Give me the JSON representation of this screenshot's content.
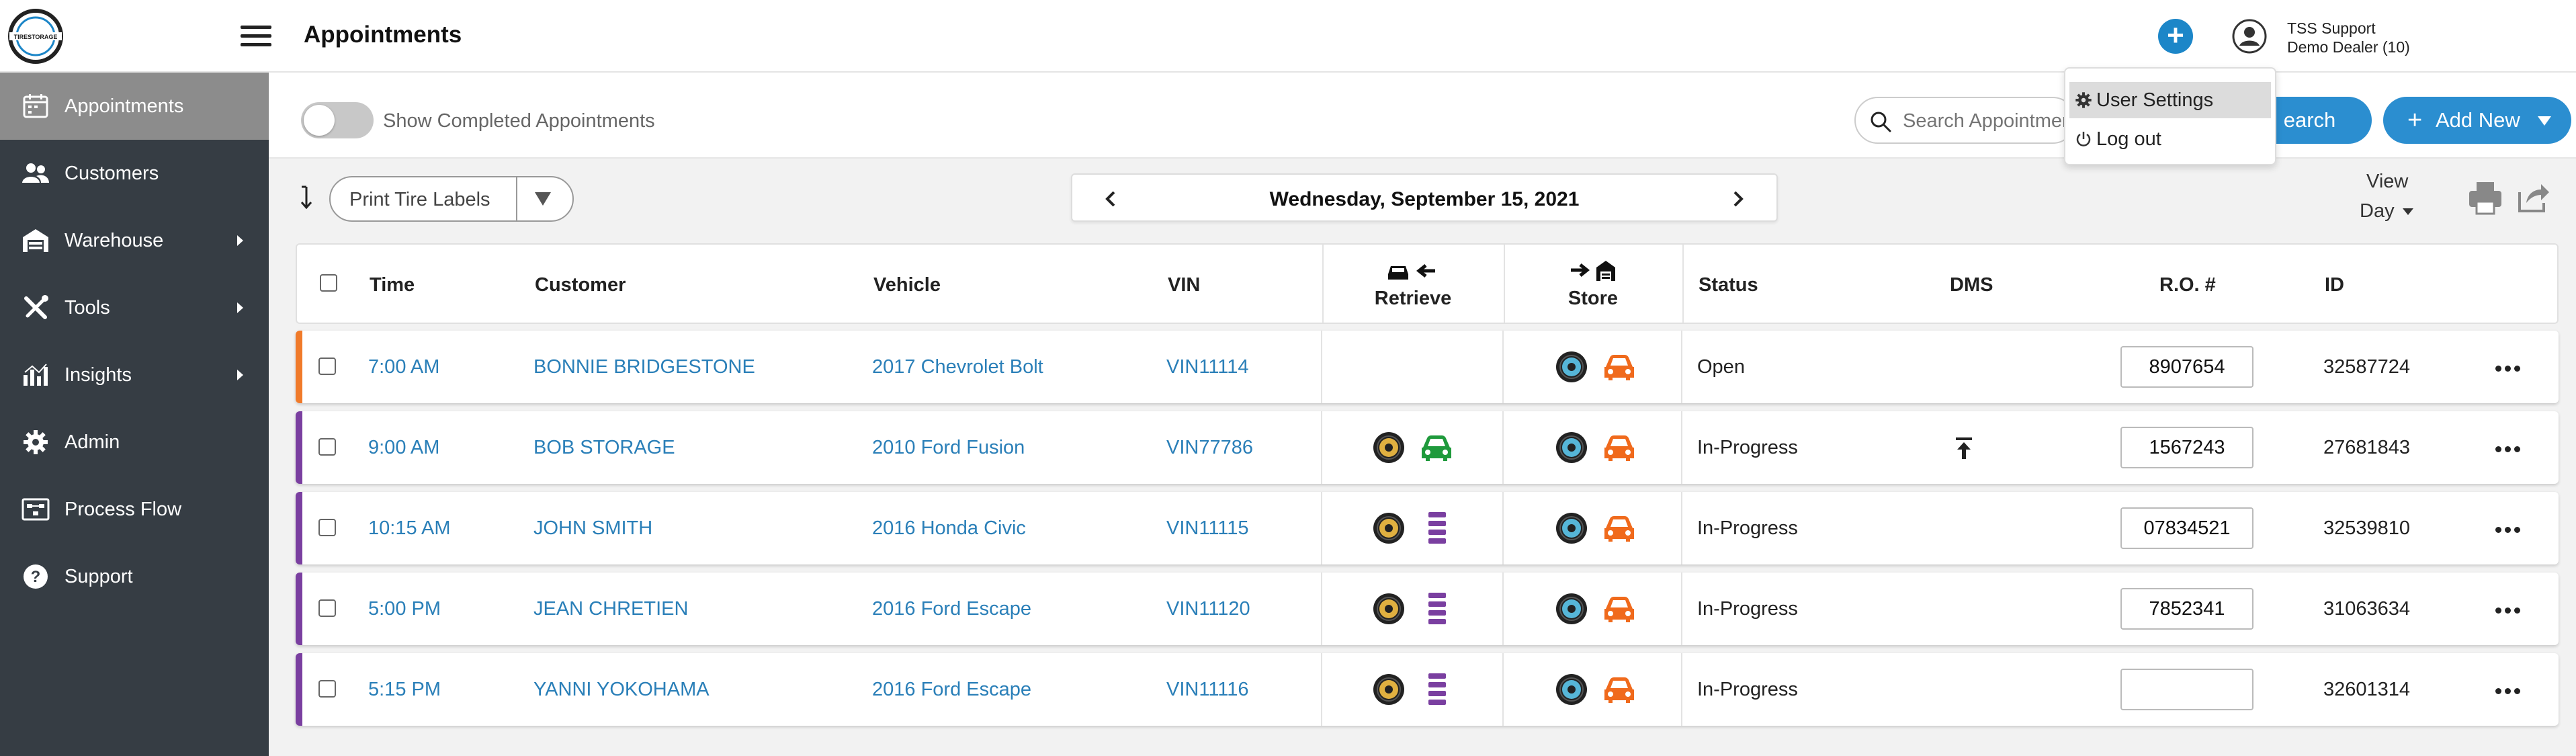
{
  "header": {
    "title": "Appointments",
    "user_name": "TSS Support",
    "user_dealer": "Demo Dealer (10)"
  },
  "logo": {
    "text": "TIRESTORAGE"
  },
  "sidebar": {
    "items": [
      {
        "label": "Appointments",
        "icon": "calendar-icon",
        "active": true,
        "expandable": false
      },
      {
        "label": "Customers",
        "icon": "customers-icon",
        "active": false,
        "expandable": false
      },
      {
        "label": "Warehouse",
        "icon": "warehouse-icon",
        "active": false,
        "expandable": true
      },
      {
        "label": "Tools",
        "icon": "tools-icon",
        "active": false,
        "expandable": true
      },
      {
        "label": "Insights",
        "icon": "insights-icon",
        "active": false,
        "expandable": true
      },
      {
        "label": "Admin",
        "icon": "gear-icon",
        "active": false,
        "expandable": false
      },
      {
        "label": "Process Flow",
        "icon": "process-flow-icon",
        "active": false,
        "expandable": false
      },
      {
        "label": "Support",
        "icon": "help-icon",
        "active": false,
        "expandable": false
      }
    ]
  },
  "filters": {
    "toggle_label": "Show Completed Appointments",
    "search_placeholder": "Search Appointments",
    "search_button": "Search",
    "search_button_visible": "earch",
    "add_new": "Add New"
  },
  "user_menu": {
    "items": [
      {
        "label": "User Settings",
        "icon": "gear-icon"
      },
      {
        "label": "Log out",
        "icon": "power-icon"
      }
    ]
  },
  "toolbar": {
    "print_labels": "Print Tire Labels",
    "date": "Wednesday, September 15, 2021",
    "view_label": "View",
    "view_value": "Day"
  },
  "table": {
    "headers": {
      "time": "Time",
      "customer": "Customer",
      "vehicle": "Vehicle",
      "vin": "VIN",
      "retrieve": "Retrieve",
      "store": "Store",
      "status": "Status",
      "dms": "DMS",
      "ro": "R.O. #",
      "id": "ID"
    },
    "rows": [
      {
        "time": "7:00 AM",
        "customer": "BONNIE BRIDGESTONE",
        "vehicle": "2017 Chevrolet Bolt",
        "vin": "VIN11114",
        "retrieve": "none",
        "status": "Open",
        "dms": false,
        "ro": "8907654",
        "id": "32587724",
        "accent": "#f07a2a"
      },
      {
        "time": "9:00 AM",
        "customer": "BOB STORAGE",
        "vehicle": "2010 Ford Fusion",
        "vin": "VIN77786",
        "retrieve": "car",
        "status": "In-Progress",
        "dms": true,
        "ro": "1567243",
        "id": "27681843",
        "accent": "#7a3fa0"
      },
      {
        "time": "10:15 AM",
        "customer": "JOHN SMITH",
        "vehicle": "2016 Honda Civic",
        "vin": "VIN11115",
        "retrieve": "rack",
        "status": "In-Progress",
        "dms": false,
        "ro": "07834521",
        "id": "32539810",
        "accent": "#7a3fa0"
      },
      {
        "time": "5:00 PM",
        "customer": "JEAN CHRETIEN",
        "vehicle": "2016 Ford Escape",
        "vin": "VIN11120",
        "retrieve": "rack",
        "status": "In-Progress",
        "dms": false,
        "ro": "7852341",
        "id": "31063634",
        "accent": "#7a3fa0"
      },
      {
        "time": "5:15 PM",
        "customer": "YANNI YOKOHAMA",
        "vehicle": "2016 Ford Escape",
        "vin": "VIN11116",
        "retrieve": "rack",
        "status": "In-Progress",
        "dms": false,
        "ro": "",
        "id": "32601314",
        "accent": "#7a3fa0"
      }
    ]
  },
  "colors": {
    "link": "#2a7fb8",
    "primary_button": "#2b8ed0",
    "sidebar_bg": "#363d44",
    "sidebar_active": "#8c8c8c",
    "car_store": "#f06a1c",
    "car_retrieve": "#1f9a3c",
    "rack": "#7a3fa0"
  }
}
